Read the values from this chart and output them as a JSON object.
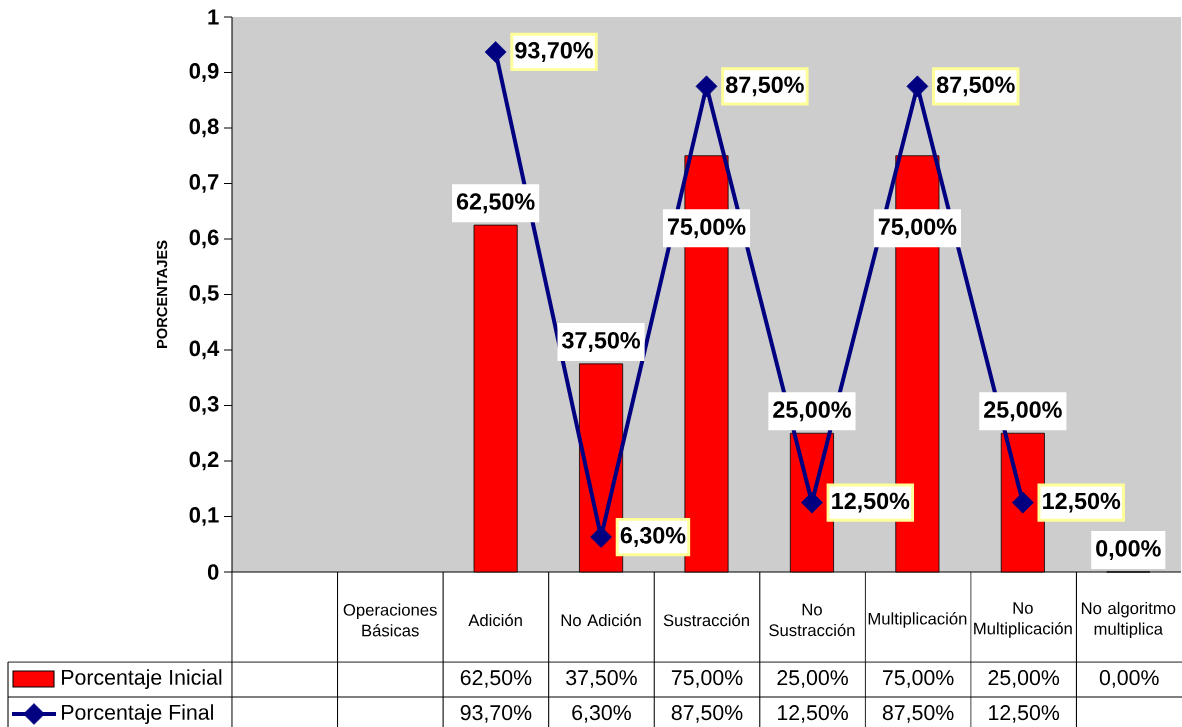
{
  "chart_data": {
    "type": "bar",
    "ylabel": "PORCENTAJES",
    "categories": [
      null,
      "Operaciones Básicas",
      "Adición",
      "No Adición",
      "Sustracción",
      "No Sustracción",
      "Multiplicación",
      "No Multiplicación",
      "No algoritmo multiplica"
    ],
    "series": [
      {
        "name": "Porcentaje Inicial",
        "color": "#ff0000",
        "values": [
          null,
          null,
          0.625,
          0.375,
          0.75,
          0.25,
          0.75,
          0.25,
          0
        ],
        "value_labels": [
          null,
          null,
          "62,50%",
          "37,50%",
          "75,00%",
          "25,00%",
          "75,00%",
          "25,00%",
          "0,00%"
        ]
      },
      {
        "name": "Porcentaje Final",
        "type": "line",
        "color": "#000080",
        "values": [
          null,
          null,
          0.937,
          0.063,
          0.875,
          0.125,
          0.875,
          0.125,
          null
        ],
        "value_labels": [
          null,
          null,
          "93,70%",
          "6,30%",
          "87,50%",
          "12,50%",
          "87,50%",
          "12,50%",
          null
        ]
      }
    ],
    "ylim": [
      0,
      1
    ],
    "yticks": [
      0,
      {
        "value": 0.1,
        "label": "0,1"
      },
      {
        "value": 0.2,
        "label": "0,2"
      },
      {
        "value": 0.3,
        "label": "0,3"
      },
      {
        "value": 0.4,
        "label": "0,4"
      },
      {
        "value": 0.5,
        "label": "0,5"
      },
      {
        "value": 0.6,
        "label": "0,6"
      },
      {
        "value": 0.7,
        "label": "0,7"
      },
      {
        "value": 0.8,
        "label": "0,8"
      },
      {
        "value": 0.9,
        "label": "0,9"
      },
      1
    ],
    "marker": "diamond",
    "legend": "bottom left"
  }
}
